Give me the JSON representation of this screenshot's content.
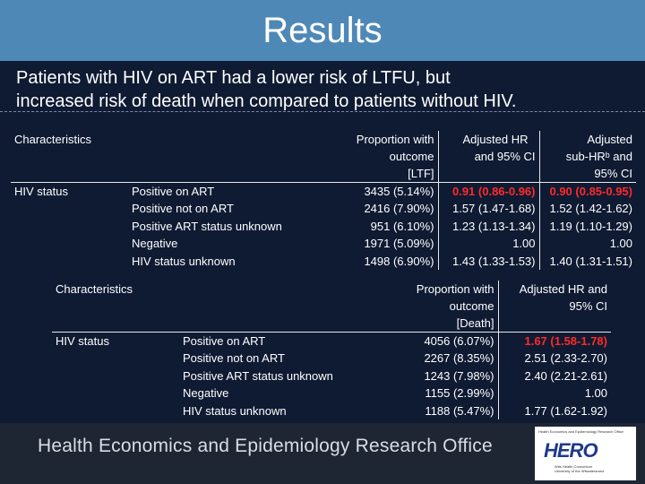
{
  "slide": {
    "title": "Results",
    "subtitle_line1": "Patients with HIV on ART had a lower risk of LTFU, but",
    "subtitle_line2": "increased risk of death when compared to patients without HIV."
  },
  "ltfu_table": {
    "header": {
      "characteristics": "Characteristics",
      "proportion_l1": "Proportion with",
      "proportion_l2": "outcome",
      "proportion_l3": "[LTF]",
      "hr_l1": "Adjusted HR",
      "hr_l2": "and 95% CI",
      "sub_l1": "Adjusted",
      "sub_l2": "sub-HRᵇ and",
      "sub_l3": "95% CI"
    },
    "group_label": "HIV status",
    "rows": [
      {
        "label": "Positive on ART",
        "proportion": "3435 (5.14%)",
        "hr": "0.91 (0.86-0.96)",
        "sub_hr": "0.90 (0.85-0.95)"
      },
      {
        "label": "Positive not on ART",
        "proportion": "2416 (7.90%)",
        "hr": "1.57 (1.47-1.68)",
        "sub_hr": "1.52 (1.42-1.62)"
      },
      {
        "label": "Positive ART status unknown",
        "proportion": "951 (6.10%)",
        "hr": "1.23 (1.13-1.34)",
        "sub_hr": "1.19 (1.10-1.29)"
      },
      {
        "label": "Negative",
        "proportion": "1971 (5.09%)",
        "hr": "1.00",
        "sub_hr": "1.00"
      },
      {
        "label": "HIV status unknown",
        "proportion": "1498 (6.90%)",
        "hr": "1.43 (1.33-1.53)",
        "sub_hr": "1.40 (1.31-1.51)"
      }
    ]
  },
  "death_table": {
    "header": {
      "characteristics": "Characteristics",
      "proportion_l1": "Proportion with",
      "proportion_l2": "outcome",
      "proportion_l3": "[Death]",
      "hr_l1": "Adjusted HR and",
      "hr_l2": "95% CI"
    },
    "group_label": "HIV status",
    "rows": [
      {
        "label": "Positive on ART",
        "proportion": "4056 (6.07%)",
        "hr": "1.67 (1.58-1.78)"
      },
      {
        "label": "Positive not on ART",
        "proportion": "2267 (8.35%)",
        "hr": "2.51 (2.33-2.70)"
      },
      {
        "label": "Positive ART status unknown",
        "proportion": "1243 (7.98%)",
        "hr": "2.40 (2.21-2.61)"
      },
      {
        "label": "Negative",
        "proportion": "1155 (2.99%)",
        "hr": "1.00"
      },
      {
        "label": "HIV status unknown",
        "proportion": "1188 (5.47%)",
        "hr": "1.77 (1.62-1.92)"
      }
    ]
  },
  "footer": {
    "org_name": "Health Economics and Epidemiology Research Office",
    "logo_text": "HERO",
    "logo_caption_top": "Health Economics and Epidemiology Research Office",
    "logo_caption_l1": "Wits Health Consortium",
    "logo_caption_l2": "University of the Witwatersrand"
  },
  "colors": {
    "title_bar": "#4e88b6",
    "background": "#0f1b33",
    "highlight_red": "#ff2a2a",
    "footer_bar": "#1e2633"
  }
}
